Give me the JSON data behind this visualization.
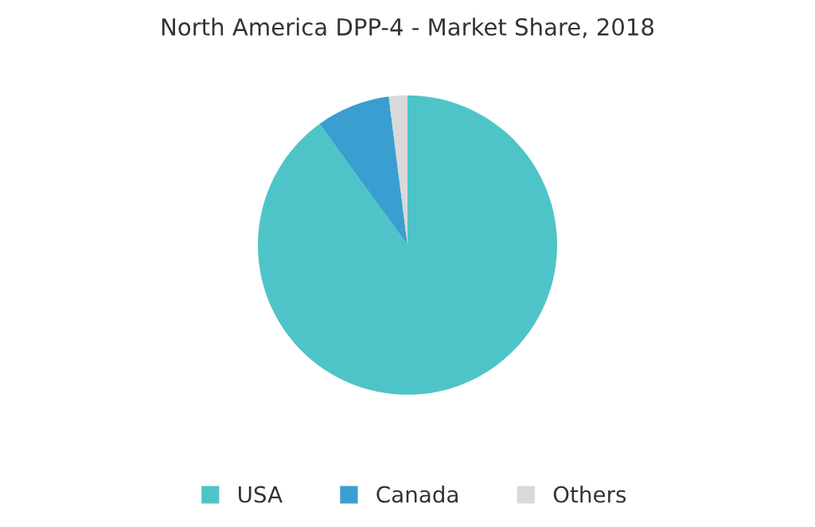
{
  "chart_data": {
    "type": "pie",
    "title": "North America DPP-4 - Market Share, 2018",
    "categories": [
      "USA",
      "Canada",
      "Others"
    ],
    "values": [
      90,
      8,
      2
    ],
    "colors": [
      "#4fc4c8",
      "#3a9fd0",
      "#d9d9d9"
    ],
    "legend": "bottom"
  }
}
